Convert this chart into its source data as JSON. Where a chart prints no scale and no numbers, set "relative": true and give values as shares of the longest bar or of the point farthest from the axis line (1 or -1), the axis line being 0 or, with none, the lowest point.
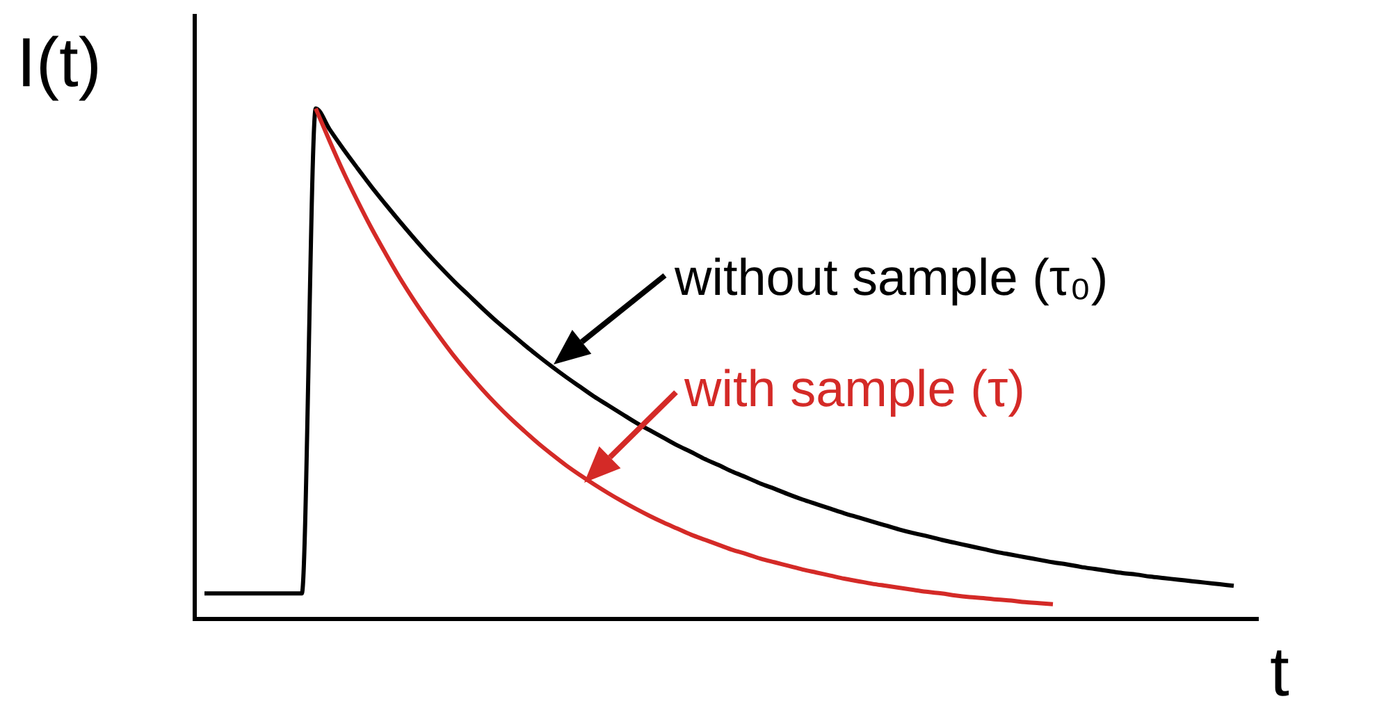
{
  "chart_data": {
    "type": "line",
    "relative": true,
    "xlabel": "t",
    "ylabel": "I(t)",
    "legend": "right",
    "categories": [
      null,
      null,
      null,
      null,
      null,
      null,
      null,
      null,
      null,
      null,
      null,
      null,
      null,
      null,
      null,
      null,
      null,
      null,
      null,
      null,
      null,
      null,
      null,
      null,
      null,
      null,
      null,
      null,
      null,
      null,
      null,
      null,
      null,
      null,
      null,
      null,
      null,
      null,
      null,
      null,
      null,
      null,
      null,
      null,
      null,
      null,
      null,
      null,
      null,
      null,
      null,
      null,
      null,
      null,
      null,
      null,
      null,
      null,
      null,
      null,
      null,
      null,
      null,
      null,
      null,
      null,
      null,
      null,
      null,
      null,
      null,
      null,
      null,
      null,
      null
    ],
    "series": [
      {
        "name": "without sample (τ₀)",
        "color": "#000000",
        "values": [
          0.05,
          0.05,
          0.05,
          0.05,
          0.05,
          0.05,
          0.05,
          0.05,
          1.0,
          0.959,
          0.92,
          0.883,
          0.847,
          0.813,
          0.78,
          0.748,
          0.717,
          0.688,
          0.66,
          0.634,
          0.608,
          0.583,
          0.56,
          0.537,
          0.515,
          0.494,
          0.474,
          0.455,
          0.436,
          0.419,
          0.402,
          0.385,
          0.37,
          0.355,
          0.34,
          0.327,
          0.313,
          0.301,
          0.288,
          0.277,
          0.265,
          0.255,
          0.244,
          0.234,
          0.225,
          0.216,
          0.207,
          0.199,
          0.191,
          0.183,
          0.175,
          0.168,
          0.162,
          0.155,
          0.149,
          0.143,
          0.137,
          0.131,
          0.126,
          0.121,
          0.116,
          0.111,
          0.107,
          0.102,
          0.098,
          0.094,
          0.09,
          0.087,
          0.083,
          0.08,
          0.077,
          0.074,
          0.071,
          0.068,
          0.065
        ]
      },
      {
        "name": "with sample (τ)",
        "color": "#d42a27",
        "values": [
          null,
          null,
          null,
          null,
          null,
          null,
          null,
          null,
          1.0,
          0.936,
          0.875,
          0.819,
          0.766,
          0.717,
          0.67,
          0.627,
          0.587,
          0.549,
          0.513,
          0.48,
          0.449,
          0.42,
          0.393,
          0.368,
          0.344,
          0.322,
          0.301,
          0.282,
          0.264,
          0.247,
          0.231,
          0.216,
          0.202,
          0.189,
          0.177,
          0.165,
          0.155,
          0.145,
          0.135,
          0.127,
          0.118,
          0.111,
          0.104,
          0.097,
          0.091,
          0.085,
          0.079,
          0.074,
          0.069,
          0.065,
          0.061,
          0.057,
          0.053,
          0.05,
          0.046,
          0.043,
          0.041,
          0.038,
          0.036,
          0.033,
          0.031,
          0.029,
          null,
          null,
          null,
          null,
          null,
          null,
          null,
          null,
          null,
          null,
          null,
          null,
          null
        ]
      }
    ]
  }
}
